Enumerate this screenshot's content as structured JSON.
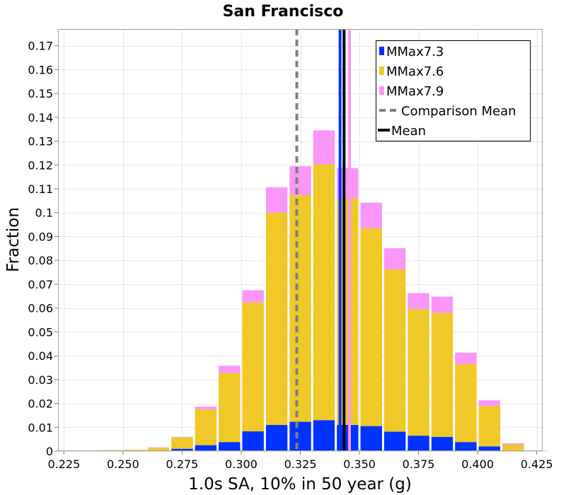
{
  "chart_data": {
    "type": "bar",
    "stacked": true,
    "title": "San Francisco",
    "xlabel": "1.0s SA, 10% in 50 year (g)",
    "ylabel": "Fraction",
    "xlim": [
      0.2225,
      0.4275
    ],
    "ylim": [
      0,
      0.177
    ],
    "xticks": [
      0.225,
      0.25,
      0.275,
      0.3,
      0.325,
      0.35,
      0.375,
      0.4,
      0.425
    ],
    "xtick_labels": [
      "0.225",
      "0.250",
      "0.275",
      "0.300",
      "0.325",
      "0.350",
      "0.375",
      "0.400",
      "0.425"
    ],
    "yticks": [
      0,
      0.01,
      0.02,
      0.03,
      0.04,
      0.05,
      0.06,
      0.07,
      0.08,
      0.09,
      0.1,
      0.11,
      0.12,
      0.13,
      0.14,
      0.15,
      0.16,
      0.17
    ],
    "ytick_labels": [
      "0",
      "0.01",
      "0.02",
      "0.03",
      "0.04",
      "0.05",
      "0.06",
      "0.07",
      "0.08",
      "0.09",
      "0.1",
      "0.11",
      "0.12",
      "0.13",
      "0.14",
      "0.15",
      "0.16",
      "0.17"
    ],
    "bin_width": 0.01,
    "bin_centers": [
      0.235,
      0.245,
      0.255,
      0.265,
      0.275,
      0.285,
      0.295,
      0.305,
      0.315,
      0.325,
      0.335,
      0.345,
      0.355,
      0.365,
      0.375,
      0.385,
      0.395,
      0.405,
      0.415,
      0.425
    ],
    "series": [
      {
        "name": "MMax7.3",
        "color": "#0033ff",
        "values": [
          0,
          0,
          0,
          0.0002,
          0.001,
          0.0025,
          0.0038,
          0.0083,
          0.011,
          0.0123,
          0.013,
          0.011,
          0.0105,
          0.0082,
          0.0065,
          0.006,
          0.0038,
          0.002,
          0.0003,
          0
        ]
      },
      {
        "name": "MMax7.6",
        "color": "#f0c828",
        "values": [
          0.0003,
          0.0004,
          0.0006,
          0.0012,
          0.0048,
          0.015,
          0.029,
          0.054,
          0.089,
          0.095,
          0.1073,
          0.095,
          0.083,
          0.068,
          0.053,
          0.052,
          0.0327,
          0.017,
          0.0025,
          0.0002
        ]
      },
      {
        "name": "MMax7.9",
        "color": "#fa96fa",
        "values": [
          0,
          0,
          0,
          0.0002,
          0.0002,
          0.0012,
          0.003,
          0.0052,
          0.0106,
          0.0122,
          0.0142,
          0.0127,
          0.0107,
          0.0089,
          0.0068,
          0.0068,
          0.0048,
          0.0023,
          0.0005,
          0
        ]
      }
    ],
    "vlines": [
      {
        "name": "Comparison Mean",
        "x": 0.3235,
        "color": "#808080",
        "style": "dashed"
      },
      {
        "name": "MMax7.3 mean",
        "x": 0.3418,
        "color": "#0033ff",
        "style": "solid"
      },
      {
        "name": "MMax7.9 mean",
        "x": 0.3458,
        "color": "#fa96fa",
        "style": "solid"
      },
      {
        "name": "Mean",
        "x": 0.3435,
        "color": "#000000",
        "style": "solid"
      }
    ],
    "legend": {
      "position": "top-right",
      "entries": [
        {
          "label": "MMax7.3",
          "color": "#0033ff",
          "kind": "box"
        },
        {
          "label": "MMax7.6",
          "color": "#f0c828",
          "kind": "box"
        },
        {
          "label": "MMax7.9",
          "color": "#fa96fa",
          "kind": "box"
        },
        {
          "label": "Comparison Mean",
          "color": "#808080",
          "kind": "dashed-line"
        },
        {
          "label": "Mean",
          "color": "#000000",
          "kind": "line"
        }
      ]
    },
    "grid": true
  }
}
